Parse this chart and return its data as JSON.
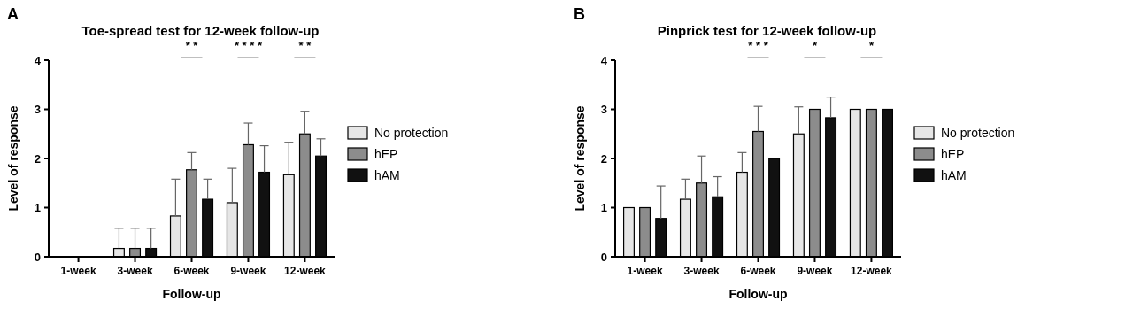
{
  "chart_data": [
    {
      "type": "bar",
      "title": "Toe-spread test for 12-week follow-up",
      "xlabel": "Follow-up",
      "ylabel": "Level of response",
      "categories": [
        "1-week",
        "3-week",
        "6-week",
        "9-week",
        "12-week"
      ],
      "series": [
        {
          "name": "No protection",
          "color": "#e6e6e6",
          "values": [
            0,
            0.17,
            0.83,
            1.1,
            1.67
          ],
          "errors": [
            null,
            [
              0.17,
              0.58
            ],
            [
              0.83,
              1.58
            ],
            [
              1.1,
              1.8
            ],
            [
              1.67,
              2.33
            ]
          ]
        },
        {
          "name": "hEP",
          "color": "#8c8c8c",
          "values": [
            0,
            0.17,
            1.77,
            2.28,
            2.5
          ],
          "errors": [
            null,
            [
              0.17,
              0.58
            ],
            [
              1.77,
              2.12
            ],
            [
              2.28,
              2.72
            ],
            [
              2.5,
              2.96
            ]
          ]
        },
        {
          "name": "hAM",
          "color": "#111111",
          "values": [
            0,
            0.17,
            1.17,
            1.72,
            2.05
          ],
          "errors": [
            null,
            [
              0.17,
              0.58
            ],
            [
              1.17,
              1.58
            ],
            [
              1.72,
              2.26
            ],
            [
              2.05,
              2.4
            ]
          ]
        }
      ],
      "ylim": [
        0,
        4
      ],
      "yticks": [
        0,
        1,
        2,
        3,
        4
      ],
      "grid": false,
      "legend": "right",
      "annotations": [
        "A",
        "* *",
        "* * * *",
        "* *"
      ]
    },
    {
      "type": "bar",
      "title": "Pinprick test for 12-week follow-up",
      "xlabel": "Follow-up",
      "ylabel": "Level of response",
      "categories": [
        "1-week",
        "3-week",
        "6-week",
        "9-week",
        "12-week"
      ],
      "series": [
        {
          "name": "No protection",
          "color": "#e6e6e6",
          "values": [
            1,
            1.17,
            1.72,
            2.5,
            3
          ],
          "errors": [
            null,
            [
              1.17,
              1.58
            ],
            [
              1.72,
              2.12
            ],
            [
              2.5,
              3.05
            ],
            null
          ]
        },
        {
          "name": "hEP",
          "color": "#8c8c8c",
          "values": [
            1,
            1.5,
            2.55,
            3,
            3
          ],
          "errors": [
            null,
            [
              1.5,
              2.05
            ],
            [
              2.55,
              3.06
            ],
            null,
            null
          ]
        },
        {
          "name": "hAM",
          "color": "#111111",
          "values": [
            0.78,
            1.22,
            2,
            2.83,
            3
          ],
          "errors": [
            [
              0.78,
              1.44
            ],
            [
              1.22,
              1.63
            ],
            null,
            [
              2.83,
              3.25
            ],
            null
          ]
        }
      ],
      "ylim": [
        0,
        4
      ],
      "yticks": [
        0,
        1,
        2,
        3,
        4
      ],
      "grid": false,
      "legend": "right",
      "annotations": [
        "B",
        "* * *",
        "*",
        "*"
      ]
    }
  ]
}
